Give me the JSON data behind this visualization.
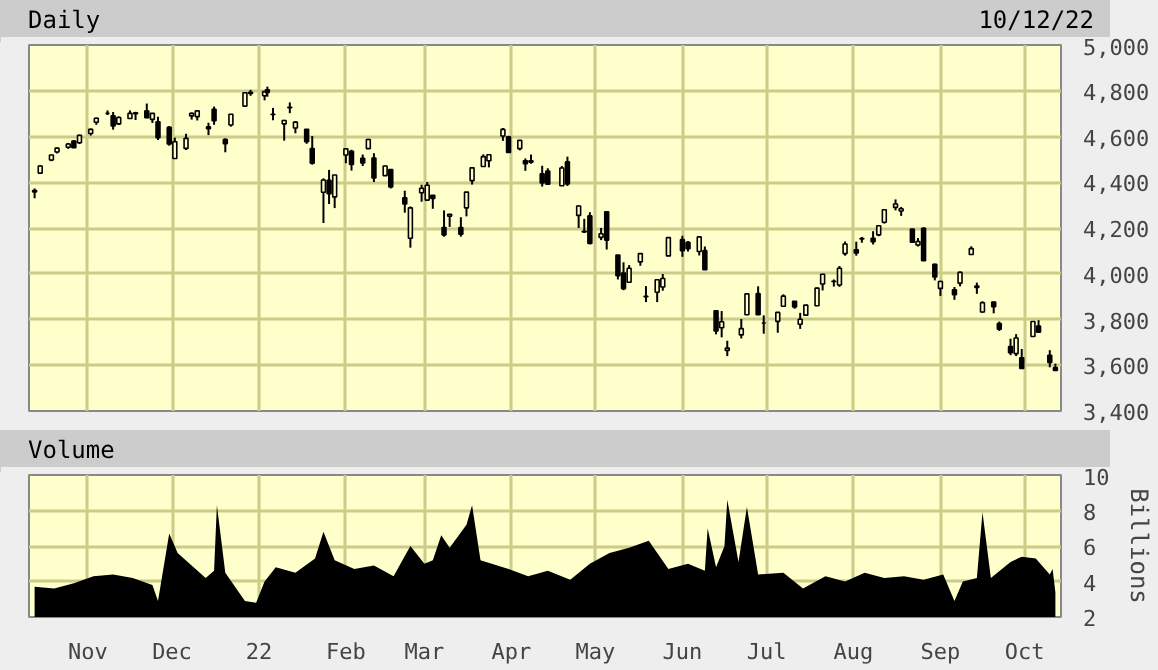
{
  "chart_data": [
    {
      "type": "candlestick",
      "title": "Daily",
      "annotations": [
        "10/12/22"
      ],
      "color": "#000000",
      "grid": true,
      "tick_labels": "y",
      "xlim": [
        "2021-10-11",
        "2022-10-14"
      ],
      "xticks": [
        {
          "value": "2021-11-01",
          "label": null
        },
        {
          "value": "2021-12-01",
          "label": null
        },
        {
          "value": "2022-01-01",
          "label": null
        },
        {
          "value": "2022-02-01",
          "label": null
        },
        {
          "value": "2022-03-01",
          "label": null
        },
        {
          "value": "2022-04-01",
          "label": null
        },
        {
          "value": "2022-05-01",
          "label": null
        },
        {
          "value": "2022-06-01",
          "label": null
        },
        {
          "value": "2022-07-01",
          "label": null
        },
        {
          "value": "2022-08-01",
          "label": null
        },
        {
          "value": "2022-09-01",
          "label": null
        },
        {
          "value": "2022-10-01",
          "label": null
        }
      ],
      "ylim": [
        3400,
        5000
      ],
      "yticks": [
        {
          "value": 3400,
          "label": "3,400"
        },
        {
          "value": 3600,
          "label": "3,600"
        },
        {
          "value": 3800,
          "label": "3,800"
        },
        {
          "value": 4000,
          "label": "4,000"
        },
        {
          "value": 4200,
          "label": "4,200"
        },
        {
          "value": 4400,
          "label": "4,400"
        },
        {
          "value": 4600,
          "label": "4,600"
        },
        {
          "value": 4800,
          "label": "4,800"
        },
        {
          "value": 5000,
          "label": "5,000"
        }
      ],
      "x": [
        "2021-10-13",
        "2021-10-15",
        "2021-10-19",
        "2021-10-21",
        "2021-10-25",
        "2021-10-27",
        "2021-10-29",
        "2021-11-02",
        "2021-11-04",
        "2021-11-08",
        "2021-11-10",
        "2021-11-12",
        "2021-11-16",
        "2021-11-18",
        "2021-11-22",
        "2021-11-24",
        "2021-11-26",
        "2021-11-30",
        "2021-12-02",
        "2021-12-06",
        "2021-12-08",
        "2021-12-10",
        "2021-12-14",
        "2021-12-16",
        "2021-12-20",
        "2021-12-22",
        "2021-12-27",
        "2021-12-29",
        "2022-01-03",
        "2022-01-04",
        "2022-01-06",
        "2022-01-10",
        "2022-01-12",
        "2022-01-14",
        "2022-01-18",
        "2022-01-20",
        "2022-01-24",
        "2022-01-26",
        "2022-01-28",
        "2022-02-01",
        "2022-02-03",
        "2022-02-07",
        "2022-02-09",
        "2022-02-11",
        "2022-02-15",
        "2022-02-17",
        "2022-02-22",
        "2022-02-24",
        "2022-02-28",
        "2022-03-02",
        "2022-03-04",
        "2022-03-08",
        "2022-03-10",
        "2022-03-14",
        "2022-03-16",
        "2022-03-18",
        "2022-03-22",
        "2022-03-24",
        "2022-03-29",
        "2022-03-31",
        "2022-04-04",
        "2022-04-06",
        "2022-04-08",
        "2022-04-12",
        "2022-04-14",
        "2022-04-19",
        "2022-04-21",
        "2022-04-25",
        "2022-04-27",
        "2022-04-29",
        "2022-05-03",
        "2022-05-05",
        "2022-05-09",
        "2022-05-11",
        "2022-05-13",
        "2022-05-17",
        "2022-05-19",
        "2022-05-23",
        "2022-05-25",
        "2022-05-27",
        "2022-06-01",
        "2022-06-03",
        "2022-06-07",
        "2022-06-09",
        "2022-06-13",
        "2022-06-15",
        "2022-06-17",
        "2022-06-22",
        "2022-06-24",
        "2022-06-28",
        "2022-06-30",
        "2022-07-05",
        "2022-07-07",
        "2022-07-11",
        "2022-07-13",
        "2022-07-15",
        "2022-07-19",
        "2022-07-21",
        "2022-07-25",
        "2022-07-27",
        "2022-07-29",
        "2022-08-02",
        "2022-08-04",
        "2022-08-08",
        "2022-08-10",
        "2022-08-12",
        "2022-08-16",
        "2022-08-18",
        "2022-08-22",
        "2022-08-24",
        "2022-08-26",
        "2022-08-30",
        "2022-09-01",
        "2022-09-06",
        "2022-09-08",
        "2022-09-12",
        "2022-09-14",
        "2022-09-16",
        "2022-09-20",
        "2022-09-22",
        "2022-09-26",
        "2022-09-28",
        "2022-09-30",
        "2022-10-04",
        "2022-10-06",
        "2022-10-10",
        "2022-10-12"
      ],
      "ohlc": [
        [
          4358,
          4373,
          4330,
          4364
        ],
        [
          4440,
          4475,
          4437,
          4471
        ],
        [
          4497,
          4520,
          4492,
          4519
        ],
        [
          4532,
          4551,
          4526,
          4549
        ],
        [
          4553,
          4572,
          4546,
          4567
        ],
        [
          4580,
          4584,
          4551,
          4551
        ],
        [
          4573,
          4608,
          4567,
          4605
        ],
        [
          4613,
          4635,
          4604,
          4631
        ],
        [
          4662,
          4683,
          4651,
          4680
        ],
        [
          4701,
          4714,
          4694,
          4701
        ],
        [
          4691,
          4707,
          4630,
          4646
        ],
        [
          4655,
          4688,
          4650,
          4683
        ],
        [
          4679,
          4714,
          4679,
          4701
        ],
        [
          4700,
          4708,
          4672,
          4704
        ],
        [
          4712,
          4744,
          4680,
          4682
        ],
        [
          4675,
          4702,
          4659,
          4701
        ],
        [
          4664,
          4686,
          4585,
          4595
        ],
        [
          4640,
          4646,
          4560,
          4567
        ],
        [
          4504,
          4595,
          4504,
          4577
        ],
        [
          4548,
          4612,
          4541,
          4592
        ],
        [
          4690,
          4705,
          4674,
          4701
        ],
        [
          4687,
          4713,
          4670,
          4712
        ],
        [
          4642,
          4660,
          4606,
          4634
        ],
        [
          4719,
          4731,
          4651,
          4669
        ],
        [
          4587,
          4592,
          4531,
          4568
        ],
        [
          4650,
          4697,
          4643,
          4697
        ],
        [
          4733,
          4791,
          4733,
          4791
        ],
        [
          4788,
          4804,
          4778,
          4793
        ],
        [
          4778,
          4796,
          4758,
          4796
        ],
        [
          4804,
          4818,
          4774,
          4793
        ],
        [
          4697,
          4725,
          4671,
          4696
        ],
        [
          4655,
          4673,
          4582,
          4670
        ],
        [
          4728,
          4749,
          4702,
          4726
        ],
        [
          4637,
          4666,
          4614,
          4663
        ],
        [
          4632,
          4632,
          4568,
          4577
        ],
        [
          4547,
          4602,
          4477,
          4483
        ],
        [
          4356,
          4417,
          4222,
          4410
        ],
        [
          4408,
          4454,
          4305,
          4350
        ],
        [
          4336,
          4432,
          4287,
          4432
        ],
        [
          4519,
          4546,
          4483,
          4546
        ],
        [
          4535,
          4542,
          4451,
          4478
        ],
        [
          4505,
          4521,
          4471,
          4484
        ],
        [
          4547,
          4590,
          4547,
          4587
        ],
        [
          4506,
          4527,
          4401,
          4419
        ],
        [
          4429,
          4473,
          4429,
          4471
        ],
        [
          4456,
          4456,
          4373,
          4380
        ],
        [
          4332,
          4363,
          4267,
          4305
        ],
        [
          4155,
          4294,
          4114,
          4288
        ],
        [
          4354,
          4389,
          4315,
          4374
        ],
        [
          4322,
          4401,
          4322,
          4387
        ],
        [
          4343,
          4344,
          4284,
          4329
        ],
        [
          4202,
          4277,
          4162,
          4170
        ],
        [
          4252,
          4261,
          4205,
          4260
        ],
        [
          4202,
          4247,
          4162,
          4173
        ],
        [
          4288,
          4358,
          4251,
          4357
        ],
        [
          4407,
          4465,
          4390,
          4463
        ],
        [
          4469,
          4522,
          4469,
          4512
        ],
        [
          4494,
          4521,
          4465,
          4520
        ],
        [
          4602,
          4637,
          4581,
          4631
        ],
        [
          4599,
          4603,
          4530,
          4530
        ],
        [
          4547,
          4583,
          4539,
          4583
        ],
        [
          4494,
          4504,
          4450,
          4481
        ],
        [
          4494,
          4521,
          4481,
          4488
        ],
        [
          4437,
          4472,
          4381,
          4397
        ],
        [
          4449,
          4461,
          4392,
          4392
        ],
        [
          4385,
          4471,
          4385,
          4462
        ],
        [
          4489,
          4512,
          4384,
          4393
        ],
        [
          4255,
          4299,
          4200,
          4296
        ],
        [
          4186,
          4240,
          4178,
          4183
        ],
        [
          4253,
          4269,
          4129,
          4132
        ],
        [
          4159,
          4200,
          4147,
          4175
        ],
        [
          4271,
          4271,
          4106,
          4147
        ],
        [
          4082,
          4082,
          3975,
          3991
        ],
        [
          4003,
          4050,
          3928,
          3935
        ],
        [
          3963,
          4038,
          3963,
          4024
        ],
        [
          4052,
          4090,
          4035,
          4088
        ],
        [
          3900,
          3946,
          3876,
          3901
        ],
        [
          3919,
          3974,
          3876,
          3974
        ],
        [
          3942,
          3999,
          3926,
          3979
        ],
        [
          4078,
          4158,
          4077,
          4158
        ],
        [
          4149,
          4166,
          4074,
          4101
        ],
        [
          4137,
          4143,
          4097,
          4109
        ],
        [
          4097,
          4164,
          4080,
          4161
        ],
        [
          4101,
          4119,
          4017,
          4018
        ],
        [
          3838,
          3838,
          3735,
          3750
        ],
        [
          3764,
          3837,
          3722,
          3790
        ],
        [
          3665,
          3707,
          3640,
          3675
        ],
        [
          3733,
          3802,
          3717,
          3760
        ],
        [
          3821,
          3913,
          3821,
          3912
        ],
        [
          3913,
          3945,
          3820,
          3821
        ],
        [
          3785,
          3818,
          3738,
          3785
        ],
        [
          3792,
          3832,
          3742,
          3831
        ],
        [
          3858,
          3910,
          3858,
          3902
        ],
        [
          3880,
          3880,
          3847,
          3855
        ],
        [
          3779,
          3829,
          3759,
          3801
        ],
        [
          3819,
          3864,
          3817,
          3863
        ],
        [
          3860,
          3939,
          3860,
          3937
        ],
        [
          3955,
          3999,
          3927,
          3998
        ],
        [
          3966,
          3975,
          3944,
          3967
        ],
        [
          3951,
          4034,
          3943,
          4024
        ],
        [
          4088,
          4141,
          4079,
          4130
        ],
        [
          4105,
          4140,
          4079,
          4091
        ],
        [
          4154,
          4161,
          4136,
          4152
        ],
        [
          4155,
          4186,
          4128,
          4140
        ],
        [
          4170,
          4211,
          4164,
          4210
        ],
        [
          4225,
          4280,
          4219,
          4280
        ],
        [
          4290,
          4325,
          4277,
          4305
        ],
        [
          4274,
          4292,
          4253,
          4284
        ],
        [
          4195,
          4195,
          4135,
          4138
        ],
        [
          4126,
          4156,
          4119,
          4141
        ],
        [
          4199,
          4203,
          4057,
          4057
        ],
        [
          4041,
          4044,
          3971,
          3986
        ],
        [
          3936,
          3970,
          3903,
          3966
        ],
        [
          3930,
          3942,
          3886,
          3908
        ],
        [
          3959,
          4010,
          3945,
          4006
        ],
        [
          4084,
          4120,
          4084,
          4110
        ],
        [
          3940,
          3961,
          3912,
          3946
        ],
        [
          3833,
          3880,
          3830,
          3873
        ],
        [
          3876,
          3878,
          3827,
          3856
        ],
        [
          3782,
          3791,
          3750,
          3758
        ],
        [
          3682,
          3716,
          3644,
          3655
        ],
        [
          3651,
          3736,
          3640,
          3719
        ],
        [
          3633,
          3671,
          3585,
          3586
        ],
        [
          3726,
          3792,
          3726,
          3791
        ],
        [
          3771,
          3797,
          3744,
          3745
        ],
        [
          3644,
          3666,
          3591,
          3612
        ],
        [
          3590,
          3607,
          3575,
          3577
        ]
      ]
    },
    {
      "type": "area",
      "title": "Volume",
      "ylabel": "Billions",
      "color": "#000000",
      "grid": true,
      "xlim": [
        "2021-10-11",
        "2022-10-14"
      ],
      "xticks": [
        {
          "value": "2021-11-01",
          "label": "Nov"
        },
        {
          "value": "2021-12-01",
          "label": "Dec"
        },
        {
          "value": "2022-01-01",
          "label": "22"
        },
        {
          "value": "2022-02-01",
          "label": "Feb"
        },
        {
          "value": "2022-03-01",
          "label": "Mar"
        },
        {
          "value": "2022-04-01",
          "label": "Apr"
        },
        {
          "value": "2022-05-01",
          "label": "May"
        },
        {
          "value": "2022-06-01",
          "label": "Jun"
        },
        {
          "value": "2022-07-01",
          "label": "Jul"
        },
        {
          "value": "2022-08-01",
          "label": "Aug"
        },
        {
          "value": "2022-09-01",
          "label": "Sep"
        },
        {
          "value": "2022-10-01",
          "label": "Oct"
        }
      ],
      "ylim": [
        2,
        10
      ],
      "yticks": [
        2,
        4,
        6,
        8,
        10
      ],
      "x": [
        "2021-10-13",
        "2021-10-20",
        "2021-10-27",
        "2021-11-03",
        "2021-11-10",
        "2021-11-17",
        "2021-11-24",
        "2021-11-26",
        "2021-11-30",
        "2021-12-03",
        "2021-12-08",
        "2021-12-13",
        "2021-12-16",
        "2021-12-17",
        "2021-12-20",
        "2021-12-27",
        "2021-12-31",
        "2022-01-03",
        "2022-01-07",
        "2022-01-14",
        "2022-01-21",
        "2022-01-24",
        "2022-01-28",
        "2022-02-04",
        "2022-02-11",
        "2022-02-18",
        "2022-02-24",
        "2022-03-01",
        "2022-03-04",
        "2022-03-07",
        "2022-03-10",
        "2022-03-16",
        "2022-03-18",
        "2022-03-21",
        "2022-03-31",
        "2022-04-07",
        "2022-04-14",
        "2022-04-22",
        "2022-04-29",
        "2022-05-06",
        "2022-05-13",
        "2022-05-20",
        "2022-05-27",
        "2022-06-03",
        "2022-06-09",
        "2022-06-10",
        "2022-06-13",
        "2022-06-16",
        "2022-06-17",
        "2022-06-21",
        "2022-06-24",
        "2022-06-28",
        "2022-07-07",
        "2022-07-14",
        "2022-07-22",
        "2022-07-29",
        "2022-08-05",
        "2022-08-12",
        "2022-08-19",
        "2022-08-26",
        "2022-09-02",
        "2022-09-06",
        "2022-09-09",
        "2022-09-14",
        "2022-09-16",
        "2022-09-19",
        "2022-09-26",
        "2022-09-30",
        "2022-10-05",
        "2022-10-10",
        "2022-10-11",
        "2022-10-12"
      ],
      "values": [
        3.7,
        3.6,
        3.9,
        4.3,
        4.4,
        4.2,
        3.8,
        2.9,
        6.7,
        5.6,
        4.9,
        4.2,
        4.6,
        8.3,
        4.5,
        2.9,
        2.8,
        4.0,
        4.8,
        4.5,
        5.3,
        6.8,
        5.2,
        4.7,
        4.9,
        4.3,
        6.0,
        5.0,
        5.2,
        6.6,
        5.9,
        7.2,
        8.3,
        5.2,
        4.7,
        4.3,
        4.6,
        4.1,
        5.0,
        5.6,
        5.9,
        6.3,
        4.7,
        5.0,
        4.6,
        7.0,
        4.8,
        6.0,
        8.6,
        5.1,
        8.2,
        4.4,
        4.5,
        3.6,
        4.3,
        4.0,
        4.5,
        4.2,
        4.3,
        4.1,
        4.4,
        2.9,
        4.0,
        4.2,
        7.9,
        4.2,
        5.1,
        5.4,
        5.3,
        4.4,
        4.7,
        3.4
      ]
    }
  ]
}
